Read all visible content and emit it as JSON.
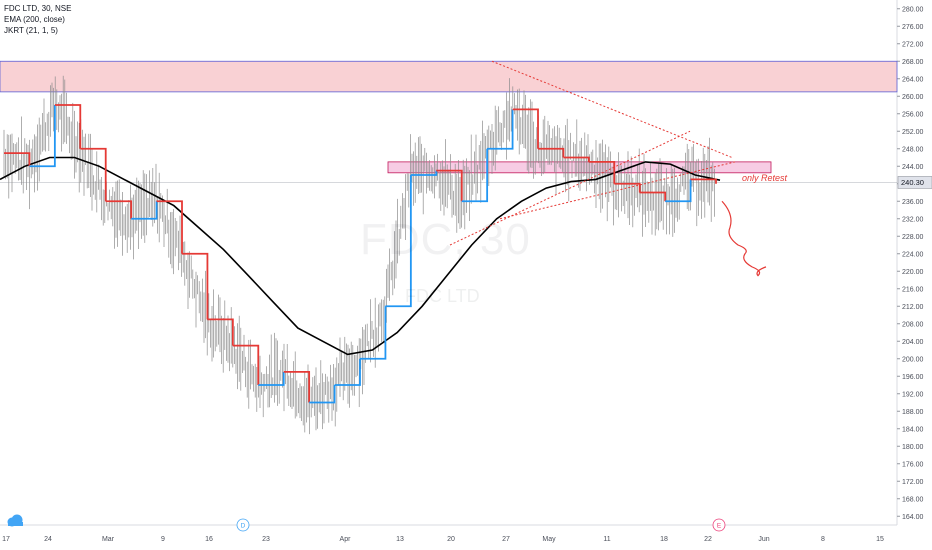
{
  "legend": {
    "symbol_line": "FDC LTD, 30, NSE",
    "ema_line": "EMA (200, close)",
    "jkrt_line": "JKRT (21, 1, 5)"
  },
  "watermark": {
    "symbol": "FDC, 30",
    "name": "FDC LTD"
  },
  "annotation": {
    "text": "only Retest",
    "color": "#e53935"
  },
  "price_label": {
    "value": "240.30"
  },
  "markers": {
    "dividend": "D",
    "earnings": "E"
  },
  "colors": {
    "zone_fill": "#f8c9cc",
    "zone_border": "#5b5fd6",
    "ema": "#000000",
    "jkrt_up": "#2196f3",
    "jkrt_down": "#e53935",
    "candles": "#8c8c8c",
    "trendline": "#e53935"
  },
  "chart_data": {
    "type": "line",
    "title": "FDC LTD, 30, NSE",
    "ylim": [
      162,
      282
    ],
    "yticks": [
      "164.00",
      "168.00",
      "172.00",
      "176.00",
      "180.00",
      "184.00",
      "188.00",
      "192.00",
      "196.00",
      "200.00",
      "204.00",
      "208.00",
      "212.00",
      "216.00",
      "220.00",
      "224.00",
      "228.00",
      "232.00",
      "236.00",
      "240.00",
      "244.00",
      "248.00",
      "252.00",
      "256.00",
      "260.00",
      "264.00",
      "268.00",
      "272.00",
      "276.00",
      "280.00"
    ],
    "xticks": [
      "17",
      "24",
      "Mar",
      "9",
      "16",
      "23",
      "Apr",
      "13",
      "20",
      "27",
      "May",
      "11",
      "18",
      "22",
      "Jun",
      "8",
      "15"
    ],
    "resistance_zone": [
      261,
      268
    ],
    "support_zone": [
      242.5,
      245
    ],
    "last_price": 240.3,
    "series": [
      {
        "name": "EMA (200, close)",
        "values": [
          241,
          244,
          246,
          246,
          244,
          241,
          238,
          235,
          230,
          225,
          219,
          213,
          207,
          204,
          201,
          202,
          206,
          212,
          219,
          226,
          232,
          236,
          239,
          240.5,
          241,
          243,
          245,
          244.5,
          242,
          240.8
        ]
      },
      {
        "name": "JKRT (21, 1, 5)",
        "values": [
          247,
          244,
          258,
          248,
          236,
          232,
          236,
          224,
          209,
          203,
          194,
          197,
          190,
          194,
          200,
          212,
          242,
          243,
          236,
          248,
          257,
          248,
          246,
          245,
          240,
          238,
          236,
          241,
          240
        ]
      }
    ],
    "projection": {
      "name": "projected path",
      "values": [
        236,
        230,
        226,
        224,
        221,
        219,
        221
      ]
    }
  }
}
